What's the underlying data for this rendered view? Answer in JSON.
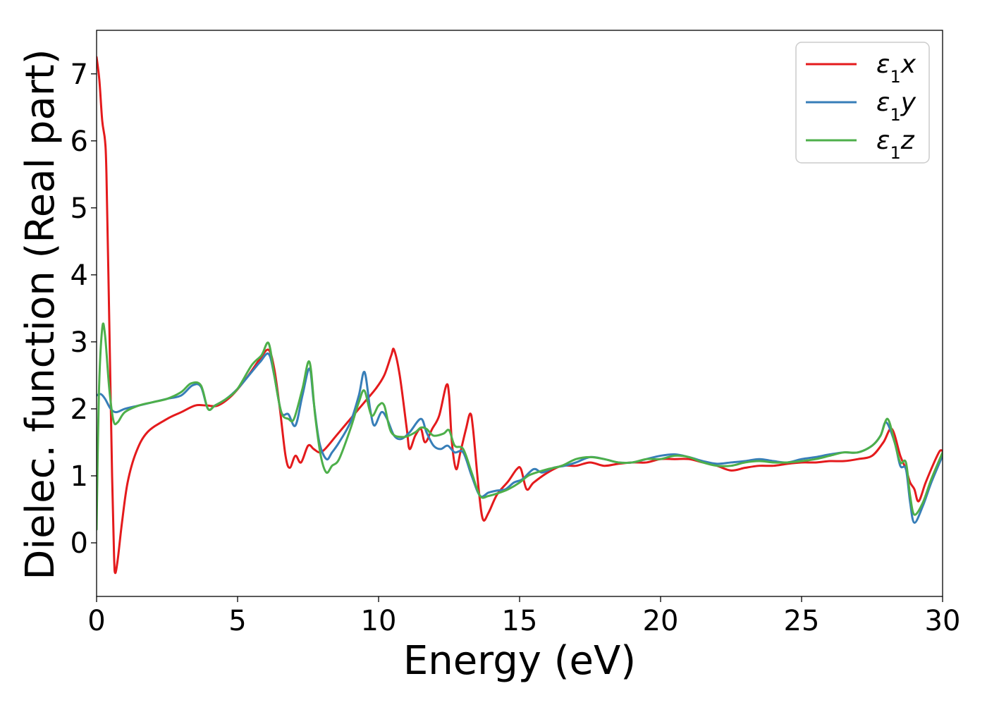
{
  "chart_data": {
    "type": "line",
    "title": "",
    "xlabel": "Energy (eV)",
    "ylabel": "Dielec. function (Real part)",
    "xlim": [
      0,
      30
    ],
    "ylim": [
      -0.8,
      7.65
    ],
    "xticks": [
      0,
      5,
      10,
      15,
      20,
      25,
      30
    ],
    "yticks": [
      0,
      1,
      2,
      3,
      4,
      5,
      6,
      7
    ],
    "grid": false,
    "legend_position": "upper right",
    "series": [
      {
        "name": "ε1x",
        "name_parts": {
          "symbol": "ε",
          "sub": "1",
          "axis": "x"
        },
        "color": "#e41a1c",
        "points": [
          [
            0,
            7.25
          ],
          [
            0.1,
            6.9
          ],
          [
            0.2,
            6.3
          ],
          [
            0.3,
            6.0
          ],
          [
            0.35,
            5.5
          ],
          [
            0.45,
            3.3
          ],
          [
            0.55,
            1.0
          ],
          [
            0.62,
            -0.2
          ],
          [
            0.66,
            -0.45
          ],
          [
            0.75,
            -0.25
          ],
          [
            0.9,
            0.3
          ],
          [
            1.1,
            0.9
          ],
          [
            1.4,
            1.35
          ],
          [
            1.8,
            1.65
          ],
          [
            2.5,
            1.85
          ],
          [
            3.0,
            1.95
          ],
          [
            3.5,
            2.05
          ],
          [
            3.9,
            2.05
          ],
          [
            4.3,
            2.05
          ],
          [
            4.8,
            2.2
          ],
          [
            5.3,
            2.45
          ],
          [
            5.8,
            2.75
          ],
          [
            6.1,
            2.88
          ],
          [
            6.3,
            2.6
          ],
          [
            6.5,
            2.0
          ],
          [
            6.7,
            1.3
          ],
          [
            6.85,
            1.12
          ],
          [
            7.05,
            1.3
          ],
          [
            7.25,
            1.2
          ],
          [
            7.5,
            1.45
          ],
          [
            7.7,
            1.4
          ],
          [
            7.9,
            1.35
          ],
          [
            8.1,
            1.4
          ],
          [
            8.5,
            1.6
          ],
          [
            9.0,
            1.85
          ],
          [
            9.5,
            2.1
          ],
          [
            9.9,
            2.3
          ],
          [
            10.2,
            2.5
          ],
          [
            10.45,
            2.8
          ],
          [
            10.55,
            2.88
          ],
          [
            10.75,
            2.5
          ],
          [
            11.0,
            1.7
          ],
          [
            11.1,
            1.4
          ],
          [
            11.3,
            1.6
          ],
          [
            11.5,
            1.7
          ],
          [
            11.65,
            1.5
          ],
          [
            11.9,
            1.7
          ],
          [
            12.15,
            1.9
          ],
          [
            12.4,
            2.35
          ],
          [
            12.5,
            2.2
          ],
          [
            12.6,
            1.5
          ],
          [
            12.75,
            1.1
          ],
          [
            12.9,
            1.35
          ],
          [
            13.1,
            1.7
          ],
          [
            13.25,
            1.93
          ],
          [
            13.35,
            1.7
          ],
          [
            13.55,
            0.8
          ],
          [
            13.7,
            0.35
          ],
          [
            13.9,
            0.45
          ],
          [
            14.2,
            0.72
          ],
          [
            14.6,
            0.92
          ],
          [
            14.9,
            1.1
          ],
          [
            15.05,
            1.1
          ],
          [
            15.25,
            0.8
          ],
          [
            15.5,
            0.9
          ],
          [
            16,
            1.05
          ],
          [
            16.5,
            1.15
          ],
          [
            17,
            1.15
          ],
          [
            17.5,
            1.2
          ],
          [
            18,
            1.15
          ],
          [
            18.5,
            1.18
          ],
          [
            19,
            1.2
          ],
          [
            19.5,
            1.2
          ],
          [
            20,
            1.25
          ],
          [
            20.5,
            1.25
          ],
          [
            21,
            1.25
          ],
          [
            21.5,
            1.2
          ],
          [
            22,
            1.15
          ],
          [
            22.5,
            1.08
          ],
          [
            23,
            1.12
          ],
          [
            23.5,
            1.15
          ],
          [
            24,
            1.15
          ],
          [
            24.5,
            1.18
          ],
          [
            25,
            1.2
          ],
          [
            25.5,
            1.2
          ],
          [
            26,
            1.22
          ],
          [
            26.5,
            1.22
          ],
          [
            27,
            1.25
          ],
          [
            27.5,
            1.3
          ],
          [
            27.9,
            1.5
          ],
          [
            28.2,
            1.7
          ],
          [
            28.5,
            1.3
          ],
          [
            28.7,
            1.1
          ],
          [
            28.85,
            0.9
          ],
          [
            29.0,
            0.8
          ],
          [
            29.15,
            0.62
          ],
          [
            29.4,
            0.9
          ],
          [
            29.7,
            1.2
          ],
          [
            29.9,
            1.37
          ],
          [
            30,
            1.37
          ]
        ]
      },
      {
        "name": "ε1y",
        "name_parts": {
          "symbol": "ε",
          "sub": "1",
          "axis": "y"
        },
        "color": "#377eb8",
        "points": [
          [
            0,
            2.2
          ],
          [
            0.15,
            2.22
          ],
          [
            0.3,
            2.15
          ],
          [
            0.5,
            2.0
          ],
          [
            0.7,
            1.95
          ],
          [
            1.0,
            2.0
          ],
          [
            1.5,
            2.05
          ],
          [
            2.0,
            2.1
          ],
          [
            2.5,
            2.15
          ],
          [
            3.0,
            2.2
          ],
          [
            3.4,
            2.35
          ],
          [
            3.7,
            2.33
          ],
          [
            3.95,
            2.0
          ],
          [
            4.2,
            2.05
          ],
          [
            4.6,
            2.15
          ],
          [
            5.0,
            2.3
          ],
          [
            5.5,
            2.55
          ],
          [
            5.8,
            2.7
          ],
          [
            6.1,
            2.82
          ],
          [
            6.3,
            2.5
          ],
          [
            6.55,
            1.95
          ],
          [
            6.8,
            1.92
          ],
          [
            7.05,
            1.75
          ],
          [
            7.3,
            2.2
          ],
          [
            7.55,
            2.6
          ],
          [
            7.7,
            2.1
          ],
          [
            7.9,
            1.5
          ],
          [
            8.15,
            1.25
          ],
          [
            8.35,
            1.35
          ],
          [
            8.6,
            1.5
          ],
          [
            9.0,
            1.8
          ],
          [
            9.3,
            2.2
          ],
          [
            9.5,
            2.55
          ],
          [
            9.7,
            2.0
          ],
          [
            9.85,
            1.75
          ],
          [
            10.1,
            1.95
          ],
          [
            10.3,
            1.85
          ],
          [
            10.55,
            1.6
          ],
          [
            10.8,
            1.55
          ],
          [
            11.1,
            1.65
          ],
          [
            11.5,
            1.85
          ],
          [
            11.7,
            1.65
          ],
          [
            11.95,
            1.45
          ],
          [
            12.2,
            1.4
          ],
          [
            12.45,
            1.45
          ],
          [
            12.7,
            1.35
          ],
          [
            13.0,
            1.35
          ],
          [
            13.3,
            1.0
          ],
          [
            13.6,
            0.7
          ],
          [
            13.9,
            0.75
          ],
          [
            14.2,
            0.78
          ],
          [
            14.5,
            0.8
          ],
          [
            14.8,
            0.9
          ],
          [
            15.1,
            0.95
          ],
          [
            15.5,
            1.1
          ],
          [
            15.8,
            1.05
          ],
          [
            16.2,
            1.12
          ],
          [
            16.6,
            1.15
          ],
          [
            17,
            1.2
          ],
          [
            17.5,
            1.28
          ],
          [
            18,
            1.25
          ],
          [
            18.5,
            1.2
          ],
          [
            19,
            1.2
          ],
          [
            19.5,
            1.25
          ],
          [
            20,
            1.3
          ],
          [
            20.5,
            1.32
          ],
          [
            21,
            1.28
          ],
          [
            21.5,
            1.22
          ],
          [
            22,
            1.18
          ],
          [
            22.5,
            1.2
          ],
          [
            23,
            1.22
          ],
          [
            23.5,
            1.25
          ],
          [
            24,
            1.22
          ],
          [
            24.5,
            1.2
          ],
          [
            25,
            1.25
          ],
          [
            25.5,
            1.28
          ],
          [
            26,
            1.32
          ],
          [
            26.5,
            1.35
          ],
          [
            27,
            1.35
          ],
          [
            27.5,
            1.45
          ],
          [
            27.8,
            1.6
          ],
          [
            28.0,
            1.8
          ],
          [
            28.3,
            1.5
          ],
          [
            28.5,
            1.15
          ],
          [
            28.7,
            1.1
          ],
          [
            28.85,
            0.6
          ],
          [
            29.0,
            0.3
          ],
          [
            29.3,
            0.55
          ],
          [
            29.6,
            0.9
          ],
          [
            30,
            1.3
          ]
        ]
      },
      {
        "name": "ε1z",
        "name_parts": {
          "symbol": "ε",
          "sub": "1",
          "axis": "z"
        },
        "color": "#4daf4a",
        "points": [
          [
            0,
            0.2
          ],
          [
            0.08,
            2.2
          ],
          [
            0.2,
            3.2
          ],
          [
            0.3,
            3.1
          ],
          [
            0.45,
            2.3
          ],
          [
            0.6,
            1.82
          ],
          [
            0.75,
            1.8
          ],
          [
            1.0,
            1.95
          ],
          [
            1.5,
            2.05
          ],
          [
            2.0,
            2.1
          ],
          [
            2.5,
            2.15
          ],
          [
            3.0,
            2.25
          ],
          [
            3.35,
            2.38
          ],
          [
            3.7,
            2.35
          ],
          [
            3.95,
            2.0
          ],
          [
            4.2,
            2.05
          ],
          [
            4.6,
            2.15
          ],
          [
            5.0,
            2.3
          ],
          [
            5.5,
            2.65
          ],
          [
            5.85,
            2.8
          ],
          [
            6.1,
            2.98
          ],
          [
            6.3,
            2.5
          ],
          [
            6.55,
            1.95
          ],
          [
            6.8,
            1.85
          ],
          [
            7.0,
            1.85
          ],
          [
            7.3,
            2.3
          ],
          [
            7.55,
            2.7
          ],
          [
            7.75,
            1.9
          ],
          [
            7.95,
            1.3
          ],
          [
            8.15,
            1.05
          ],
          [
            8.35,
            1.15
          ],
          [
            8.6,
            1.25
          ],
          [
            9.0,
            1.7
          ],
          [
            9.3,
            2.1
          ],
          [
            9.5,
            2.27
          ],
          [
            9.75,
            1.9
          ],
          [
            10.0,
            2.05
          ],
          [
            10.2,
            2.05
          ],
          [
            10.45,
            1.65
          ],
          [
            10.9,
            1.58
          ],
          [
            11.3,
            1.65
          ],
          [
            11.5,
            1.72
          ],
          [
            11.7,
            1.7
          ],
          [
            11.95,
            1.6
          ],
          [
            12.3,
            1.63
          ],
          [
            12.5,
            1.68
          ],
          [
            12.7,
            1.45
          ],
          [
            13.0,
            1.4
          ],
          [
            13.3,
            1.05
          ],
          [
            13.6,
            0.7
          ],
          [
            13.9,
            0.7
          ],
          [
            14.3,
            0.75
          ],
          [
            14.6,
            0.8
          ],
          [
            15.0,
            0.9
          ],
          [
            15.3,
            1.0
          ],
          [
            15.6,
            1.05
          ],
          [
            16.0,
            1.1
          ],
          [
            16.5,
            1.15
          ],
          [
            17,
            1.25
          ],
          [
            17.5,
            1.28
          ],
          [
            18,
            1.25
          ],
          [
            18.5,
            1.2
          ],
          [
            19,
            1.2
          ],
          [
            19.5,
            1.25
          ],
          [
            20,
            1.25
          ],
          [
            20.5,
            1.3
          ],
          [
            21,
            1.28
          ],
          [
            21.5,
            1.2
          ],
          [
            22,
            1.15
          ],
          [
            22.5,
            1.15
          ],
          [
            23,
            1.2
          ],
          [
            23.5,
            1.22
          ],
          [
            24,
            1.2
          ],
          [
            24.5,
            1.2
          ],
          [
            25,
            1.22
          ],
          [
            25.5,
            1.25
          ],
          [
            26,
            1.3
          ],
          [
            26.5,
            1.35
          ],
          [
            27,
            1.35
          ],
          [
            27.5,
            1.45
          ],
          [
            27.8,
            1.6
          ],
          [
            28.05,
            1.85
          ],
          [
            28.3,
            1.5
          ],
          [
            28.5,
            1.2
          ],
          [
            28.7,
            1.2
          ],
          [
            28.85,
            0.7
          ],
          [
            29.0,
            0.42
          ],
          [
            29.3,
            0.6
          ],
          [
            29.6,
            0.95
          ],
          [
            30,
            1.35
          ]
        ]
      }
    ]
  }
}
